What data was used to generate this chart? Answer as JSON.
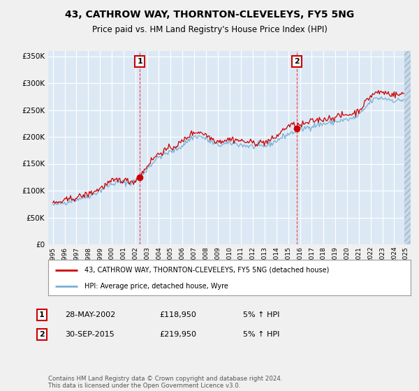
{
  "title": "43, CATHROW WAY, THORNTON-CLEVELEYS, FY5 5NG",
  "subtitle": "Price paid vs. HM Land Registry's House Price Index (HPI)",
  "legend_line1": "43, CATHROW WAY, THORNTON-CLEVELEYS, FY5 5NG (detached house)",
  "legend_line2": "HPI: Average price, detached house, Wyre",
  "annotation1": {
    "label": "1",
    "date": "28-MAY-2002",
    "price": "£118,950",
    "hpi": "5% ↑ HPI",
    "x_year": 2002.38
  },
  "annotation2": {
    "label": "2",
    "date": "30-SEP-2015",
    "price": "£219,950",
    "hpi": "5% ↑ HPI",
    "x_year": 2015.75
  },
  "footer": "Contains HM Land Registry data © Crown copyright and database right 2024.\nThis data is licensed under the Open Government Licence v3.0.",
  "fig_bg_color": "#f0f0f0",
  "plot_bg_color": "#dce9f5",
  "grid_color": "#ffffff",
  "hpi_color": "#7ab0d4",
  "price_color": "#cc0000",
  "marker_color": "#cc0000",
  "ann_box_color": "#cc0000",
  "ylim": [
    0,
    360000
  ],
  "yticks": [
    0,
    50000,
    100000,
    150000,
    200000,
    250000,
    300000,
    350000
  ],
  "xlim_start": 1994.6,
  "xlim_end": 2025.4,
  "xticks": [
    1995,
    1996,
    1997,
    1998,
    1999,
    2000,
    2001,
    2002,
    2003,
    2004,
    2005,
    2006,
    2007,
    2008,
    2009,
    2010,
    2011,
    2012,
    2013,
    2014,
    2015,
    2016,
    2017,
    2018,
    2019,
    2020,
    2021,
    2022,
    2023,
    2024,
    2025
  ]
}
